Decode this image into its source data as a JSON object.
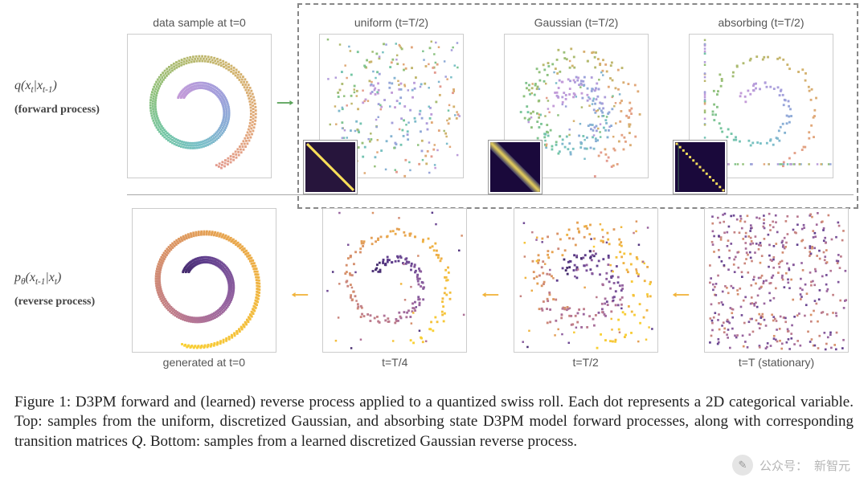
{
  "row_top": {
    "eq_html": "q(x<sub>t</sub>|x<sub>t-1</sub>)",
    "label": "(forward process)"
  },
  "row_bottom": {
    "eq_html": "p<sub>θ</sub>(x<sub>t-1</sub>|x<sub>t</sub>)",
    "label": "(reverse process)"
  },
  "panels_top": [
    {
      "title": "data sample at t=0",
      "caption": "",
      "kind": "swiss_clean",
      "matrix": null
    },
    {
      "title": "uniform (t=T/2)",
      "caption": "",
      "kind": "swiss_uniform",
      "matrix": "uniform"
    },
    {
      "title": "Gaussian (t=T/2)",
      "caption": "",
      "kind": "swiss_gauss",
      "matrix": "gaussian"
    },
    {
      "title": "absorbing (t=T/2)",
      "caption": "",
      "kind": "swiss_absorb",
      "matrix": "absorbing"
    }
  ],
  "panels_bottom": [
    {
      "title": "",
      "caption": "generated at t=0",
      "kind": "rev_clean"
    },
    {
      "title": "",
      "caption": "t=T/4",
      "kind": "rev_t4"
    },
    {
      "title": "",
      "caption": "t=T/2",
      "kind": "rev_t2"
    },
    {
      "title": "",
      "caption": "t=T (stationary)",
      "kind": "rev_stationary"
    }
  ],
  "arrow_forward_color": "#5aa35a",
  "arrow_reverse_color": "#f1b33a",
  "swiss_palette": [
    "#c49bd8",
    "#b49cdb",
    "#a09fdb",
    "#8aaed6",
    "#79c0c7",
    "#73c6a3",
    "#8fc17b",
    "#b4b96d",
    "#d2b26c",
    "#e2a879",
    "#e39a8f"
  ],
  "rev_palette": [
    "#452b6e",
    "#5e3d8c",
    "#7a5299",
    "#9764a0",
    "#b37596",
    "#c88480",
    "#d99368",
    "#e6a251",
    "#eeb044",
    "#f4c03b",
    "#f9d135"
  ],
  "matrix": {
    "bg": "#1a093b",
    "uniform": {
      "stroke": "#f9e05a",
      "width": 3,
      "blur": false
    },
    "gaussian": {
      "stroke": "#f9e05a",
      "width": 3,
      "blur": true
    },
    "absorbing": {
      "stroke": "#f9e05a",
      "width": 3,
      "blur": false,
      "dotted": true
    }
  },
  "caption": {
    "text_before": "Figure 1: D3PM forward and (learned) reverse process applied to a quantized swiss roll. Each dot represents a 2D categorical variable. Top: samples from the uniform, discretized Gaussian, and absorbing state D3PM model forward processes, along with corresponding transition matrices ",
    "q": "Q",
    "text_after": ". Bottom: samples from a learned discretized Gaussian reverse process."
  },
  "watermark": {
    "prefix": "公众号：",
    "name": "新智元"
  }
}
